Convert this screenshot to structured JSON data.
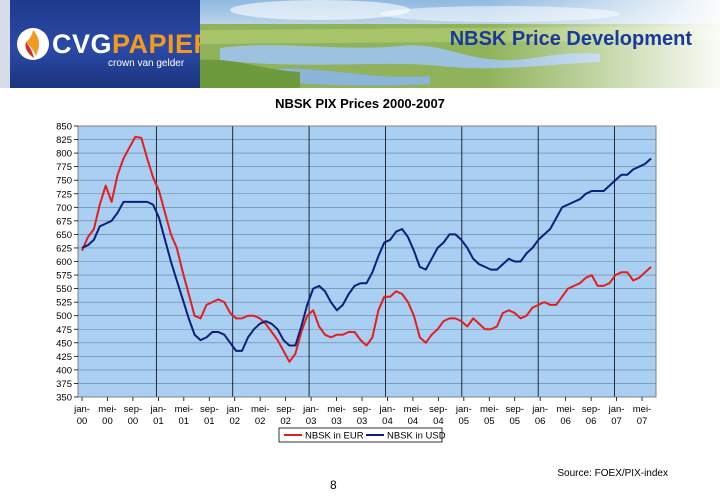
{
  "header": {
    "logo": {
      "cvg": "CVG",
      "papier": "PAPIER",
      "tagline": "crown van gelder"
    },
    "title": "NBSK Price Development"
  },
  "colors": {
    "plot_bg": "#a9cff2",
    "eur": "#e41e1e",
    "usd": "#0c1f7a",
    "title_blue": "#1a3a9a",
    "logo_blue": "#1f3a8c",
    "logo_orange": "#f39a1e"
  },
  "chart_data": {
    "type": "line",
    "title": "NBSK PIX Prices 2000-2007",
    "ylim": [
      350,
      850
    ],
    "y_ticks": [
      350,
      375,
      400,
      425,
      450,
      475,
      500,
      525,
      550,
      575,
      600,
      625,
      650,
      675,
      700,
      725,
      750,
      775,
      800,
      825,
      850
    ],
    "x_labels": [
      [
        "jan-",
        "00"
      ],
      [
        "mei-",
        "00"
      ],
      [
        "sep-",
        "00"
      ],
      [
        "jan-",
        "01"
      ],
      [
        "mei-",
        "01"
      ],
      [
        "sep-",
        "01"
      ],
      [
        "jan-",
        "02"
      ],
      [
        "mei-",
        "02"
      ],
      [
        "sep-",
        "02"
      ],
      [
        "jan-",
        "03"
      ],
      [
        "mei-",
        "03"
      ],
      [
        "sep-",
        "03"
      ],
      [
        "jan-",
        "04"
      ],
      [
        "mei-",
        "04"
      ],
      [
        "sep-",
        "04"
      ],
      [
        "jan-",
        "05"
      ],
      [
        "mei-",
        "05"
      ],
      [
        "sep-",
        "05"
      ],
      [
        "jan-",
        "06"
      ],
      [
        "mei-",
        "06"
      ],
      [
        "sep-",
        "06"
      ],
      [
        "jan-",
        "07"
      ],
      [
        "mei-",
        "07"
      ]
    ],
    "year_start_indices": [
      0,
      3,
      6,
      9,
      12,
      15,
      18,
      21
    ],
    "grid": "horizontal",
    "legend": "bottom",
    "series": [
      {
        "name": "NBSK in EUR",
        "points": [
          [
            0,
            620
          ],
          [
            1,
            645
          ],
          [
            2,
            660
          ],
          [
            3,
            705
          ],
          [
            4,
            740
          ],
          [
            5,
            710
          ],
          [
            6,
            760
          ],
          [
            7,
            790
          ],
          [
            8,
            810
          ],
          [
            9,
            830
          ],
          [
            10,
            828
          ],
          [
            11,
            790
          ],
          [
            12,
            755
          ],
          [
            13,
            730
          ],
          [
            14,
            690
          ],
          [
            15,
            650
          ],
          [
            16,
            625
          ],
          [
            17,
            580
          ],
          [
            18,
            540
          ],
          [
            19,
            500
          ],
          [
            20,
            495
          ],
          [
            21,
            520
          ],
          [
            22,
            525
          ],
          [
            23,
            530
          ],
          [
            24,
            525
          ],
          [
            25,
            505
          ],
          [
            26,
            495
          ],
          [
            27,
            495
          ],
          [
            28,
            500
          ],
          [
            29,
            500
          ],
          [
            30,
            495
          ],
          [
            31,
            485
          ],
          [
            32,
            470
          ],
          [
            33,
            455
          ],
          [
            34,
            435
          ],
          [
            35,
            415
          ],
          [
            36,
            430
          ],
          [
            37,
            470
          ],
          [
            38,
            500
          ],
          [
            39,
            510
          ],
          [
            40,
            480
          ],
          [
            41,
            465
          ],
          [
            42,
            460
          ],
          [
            43,
            465
          ],
          [
            44,
            465
          ],
          [
            45,
            470
          ],
          [
            46,
            470
          ],
          [
            47,
            455
          ],
          [
            48,
            445
          ],
          [
            49,
            460
          ],
          [
            50,
            510
          ],
          [
            51,
            535
          ],
          [
            52,
            535
          ],
          [
            53,
            545
          ],
          [
            54,
            540
          ],
          [
            55,
            525
          ],
          [
            56,
            500
          ],
          [
            57,
            460
          ],
          [
            58,
            450
          ],
          [
            59,
            465
          ],
          [
            60,
            475
          ],
          [
            61,
            490
          ],
          [
            62,
            495
          ],
          [
            63,
            495
          ],
          [
            64,
            490
          ],
          [
            65,
            480
          ],
          [
            66,
            495
          ],
          [
            67,
            485
          ],
          [
            68,
            475
          ],
          [
            69,
            475
          ],
          [
            70,
            480
          ],
          [
            71,
            505
          ],
          [
            72,
            510
          ],
          [
            73,
            505
          ],
          [
            74,
            495
          ],
          [
            75,
            500
          ],
          [
            76,
            515
          ],
          [
            77,
            520
          ],
          [
            78,
            525
          ],
          [
            79,
            520
          ],
          [
            80,
            520
          ],
          [
            81,
            535
          ],
          [
            82,
            550
          ],
          [
            83,
            555
          ],
          [
            84,
            560
          ],
          [
            85,
            570
          ],
          [
            86,
            575
          ],
          [
            87,
            555
          ],
          [
            88,
            555
          ],
          [
            89,
            560
          ],
          [
            90,
            575
          ],
          [
            91,
            580
          ],
          [
            92,
            580
          ],
          [
            93,
            565
          ],
          [
            94,
            570
          ],
          [
            95,
            580
          ],
          [
            96,
            590
          ]
        ]
      },
      {
        "name": "NBSK in USD",
        "points": [
          [
            0,
            625
          ],
          [
            1,
            630
          ],
          [
            2,
            640
          ],
          [
            3,
            665
          ],
          [
            4,
            670
          ],
          [
            5,
            675
          ],
          [
            6,
            690
          ],
          [
            7,
            710
          ],
          [
            8,
            710
          ],
          [
            9,
            710
          ],
          [
            10,
            710
          ],
          [
            11,
            710
          ],
          [
            12,
            705
          ],
          [
            13,
            680
          ],
          [
            14,
            640
          ],
          [
            15,
            600
          ],
          [
            16,
            565
          ],
          [
            17,
            530
          ],
          [
            18,
            495
          ],
          [
            19,
            465
          ],
          [
            20,
            455
          ],
          [
            21,
            460
          ],
          [
            22,
            470
          ],
          [
            23,
            470
          ],
          [
            24,
            465
          ],
          [
            25,
            450
          ],
          [
            26,
            435
          ],
          [
            27,
            435
          ],
          [
            28,
            460
          ],
          [
            29,
            475
          ],
          [
            30,
            485
          ],
          [
            31,
            490
          ],
          [
            32,
            485
          ],
          [
            33,
            475
          ],
          [
            34,
            455
          ],
          [
            35,
            445
          ],
          [
            36,
            445
          ],
          [
            37,
            480
          ],
          [
            38,
            520
          ],
          [
            39,
            550
          ],
          [
            40,
            555
          ],
          [
            41,
            545
          ],
          [
            42,
            525
          ],
          [
            43,
            510
          ],
          [
            44,
            520
          ],
          [
            45,
            540
          ],
          [
            46,
            555
          ],
          [
            47,
            560
          ],
          [
            48,
            560
          ],
          [
            49,
            580
          ],
          [
            50,
            610
          ],
          [
            51,
            635
          ],
          [
            52,
            640
          ],
          [
            53,
            655
          ],
          [
            54,
            660
          ],
          [
            55,
            645
          ],
          [
            56,
            620
          ],
          [
            57,
            590
          ],
          [
            58,
            585
          ],
          [
            59,
            605
          ],
          [
            60,
            625
          ],
          [
            61,
            635
          ],
          [
            62,
            650
          ],
          [
            63,
            650
          ],
          [
            64,
            640
          ],
          [
            65,
            625
          ],
          [
            66,
            605
          ],
          [
            67,
            595
          ],
          [
            68,
            590
          ],
          [
            69,
            585
          ],
          [
            70,
            585
          ],
          [
            71,
            595
          ],
          [
            72,
            605
          ],
          [
            73,
            600
          ],
          [
            74,
            600
          ],
          [
            75,
            615
          ],
          [
            76,
            625
          ],
          [
            77,
            640
          ],
          [
            78,
            650
          ],
          [
            79,
            660
          ],
          [
            80,
            680
          ],
          [
            81,
            700
          ],
          [
            82,
            705
          ],
          [
            83,
            710
          ],
          [
            84,
            715
          ],
          [
            85,
            725
          ],
          [
            86,
            730
          ],
          [
            87,
            730
          ],
          [
            88,
            730
          ],
          [
            89,
            740
          ],
          [
            90,
            750
          ],
          [
            91,
            760
          ],
          [
            92,
            760
          ],
          [
            93,
            770
          ],
          [
            94,
            775
          ],
          [
            95,
            780
          ],
          [
            96,
            790
          ]
        ]
      }
    ]
  },
  "footer": {
    "source": "Source: FOEX/PIX-index",
    "page_number": "8"
  }
}
